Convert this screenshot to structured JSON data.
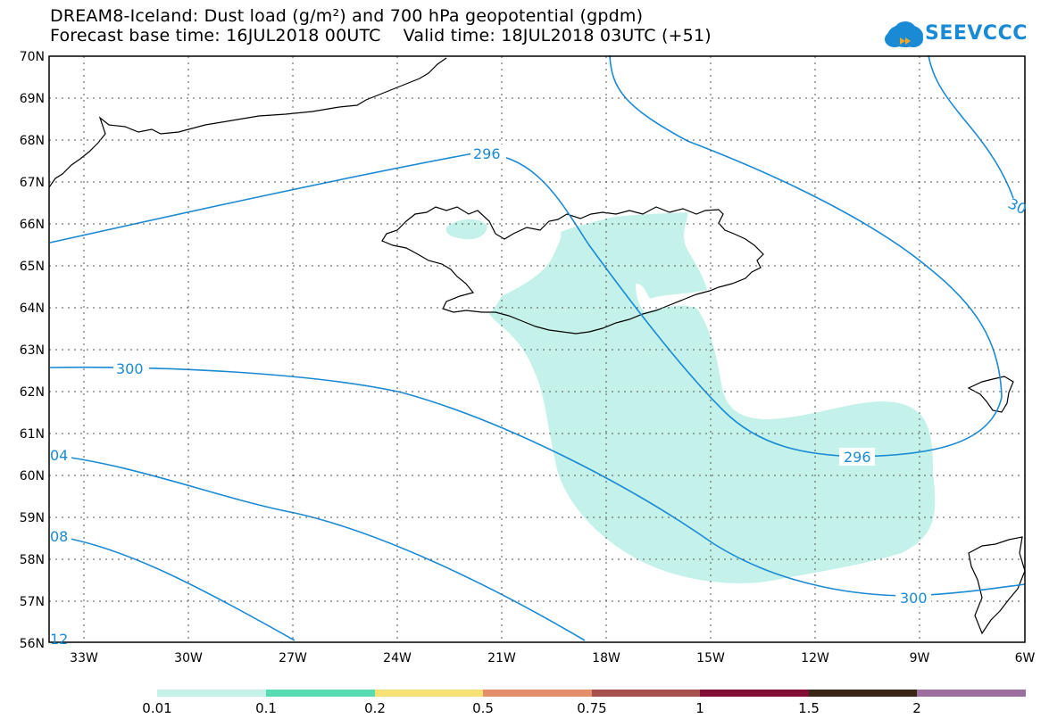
{
  "title_line1": "DREAM8-Iceland: Dust load (g/m²) and 700 hPa geopotential (gpdm)",
  "title_line2": "Forecast base time: 16JUL2018 00UTC    Valid time: 18JUL2018 03UTC (+51)",
  "logo_text": "SEEVCCC",
  "lat_labels": [
    "70N",
    "69N",
    "68N",
    "67N",
    "66N",
    "65N",
    "64N",
    "63N",
    "62N",
    "61N",
    "60N",
    "59N",
    "58N",
    "57N",
    "56N"
  ],
  "lon_labels": [
    "33W",
    "30W",
    "27W",
    "24W",
    "21W",
    "18W",
    "15W",
    "12W",
    "9W",
    "6W"
  ],
  "contour_labels": [
    "296",
    "300",
    "04",
    "08",
    "12",
    "296",
    "300",
    "30"
  ],
  "colorbar": {
    "colors": [
      "#c4f2ea",
      "#57dbb0",
      "#f5e174",
      "#e3906a",
      "#a8504c",
      "#820e35",
      "#3a2616",
      "#9b6fa0"
    ],
    "labels": [
      "0.01",
      "0.1",
      "0.2",
      "0.5",
      "0.75",
      "1",
      "1.5",
      "2"
    ]
  },
  "colors": {
    "contour": "#1a8ad4",
    "dust": "#c4f2ea"
  }
}
